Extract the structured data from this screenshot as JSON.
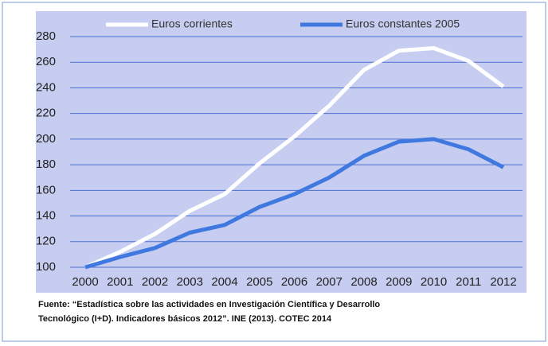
{
  "chart_data": {
    "type": "line",
    "categories": [
      "2000",
      "2001",
      "2002",
      "2003",
      "2004",
      "2005",
      "2006",
      "2007",
      "2008",
      "2009",
      "2010",
      "2011",
      "2012"
    ],
    "series": [
      {
        "name": "Euros corrientes",
        "color": "#ffffff",
        "values": [
          100,
          112,
          126,
          144,
          157,
          181,
          202,
          226,
          254,
          269,
          271,
          261,
          241
        ]
      },
      {
        "name": "Euros constantes 2005",
        "color": "#3f79e0",
        "values": [
          100,
          108,
          115,
          127,
          133,
          147,
          157,
          170,
          187,
          198,
          200,
          192,
          178
        ]
      }
    ],
    "ylim": [
      100,
      280
    ],
    "yticks": [
      100,
      120,
      140,
      160,
      180,
      200,
      220,
      240,
      260,
      280
    ],
    "grid": true,
    "source": [
      "Fuente: “Estadística  sobre las actividades  en Investigación  Científica  y Desarrollo",
      "Tecnológico  (I+D). Indicadores  básicos  2012”. INE (2013). COTEC  2014"
    ]
  }
}
